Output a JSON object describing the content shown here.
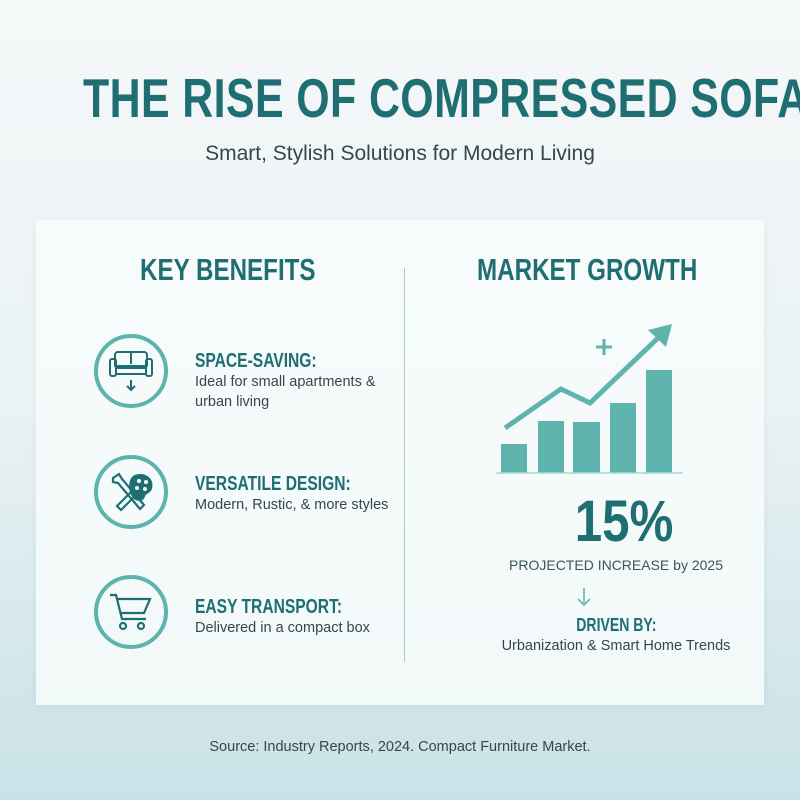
{
  "header": {
    "title": "THE RISE OF COMPRESSED SOFAS",
    "subtitle": "Smart, Stylish Solutions for Modern Living"
  },
  "benefits": {
    "heading": "KEY BENEFITS",
    "items": [
      {
        "icon": "sofa-down-arrow-icon",
        "title": "SPACE-SAVING:",
        "desc": "Ideal for small apartments & urban living"
      },
      {
        "icon": "wrench-palette-icon",
        "title": "VERSATILE DESIGN:",
        "desc": "Modern, Rustic, & more styles"
      },
      {
        "icon": "shopping-cart-icon",
        "title": "EASY TRANSPORT:",
        "desc": "Delivered in a compact box"
      }
    ]
  },
  "growth": {
    "heading": "MARKET GROWTH",
    "figure": "15%",
    "projection": "PROJECTED INCREASE by 2025",
    "driven_label": "DRIVEN BY:",
    "driven_text": "Urbanization & Smart Home Trends",
    "chart_icon": "rising-bar-chart-icon"
  },
  "footer": {
    "source": "Source: Industry Reports, 2024. Compact Furniture Market."
  },
  "colors": {
    "accent": "#1f6e72",
    "teal_light": "#5fb3ad"
  }
}
